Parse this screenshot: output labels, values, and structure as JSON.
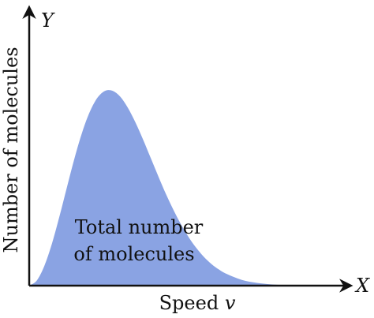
{
  "chart_data": {
    "type": "area",
    "y_axis_letter": "Y",
    "x_axis_letter": "X",
    "ylabel": "Number of molecules",
    "xlabel": "Speed ",
    "xlabel_symbol": "v",
    "area_label_line1": "Total number",
    "area_label_line2": "of molecules",
    "xlim": [
      0,
      4
    ],
    "ylim": [
      0,
      1.2
    ],
    "x": [
      0,
      0.1,
      0.2,
      0.3,
      0.4,
      0.5,
      0.6,
      0.7,
      0.8,
      0.9,
      1.0,
      1.1,
      1.2,
      1.3,
      1.4,
      1.5,
      1.6,
      1.7,
      1.8,
      1.9,
      2.0,
      2.1,
      2.2,
      2.3,
      2.4,
      2.5,
      2.6,
      2.8,
      3.0,
      3.2,
      3.4,
      3.6,
      3.8,
      4.0
    ],
    "y": [
      0,
      0.026,
      0.1,
      0.212,
      0.351,
      0.5,
      0.646,
      0.775,
      0.877,
      0.947,
      0.981,
      0.981,
      0.951,
      0.895,
      0.821,
      0.735,
      0.643,
      0.551,
      0.462,
      0.381,
      0.308,
      0.244,
      0.19,
      0.145,
      0.109,
      0.081,
      0.059,
      0.029,
      0.014,
      0.006,
      0.002,
      0.001,
      0.0003,
      0
    ],
    "fill_color": "#8aa3e3",
    "axis_color": "#111111"
  }
}
